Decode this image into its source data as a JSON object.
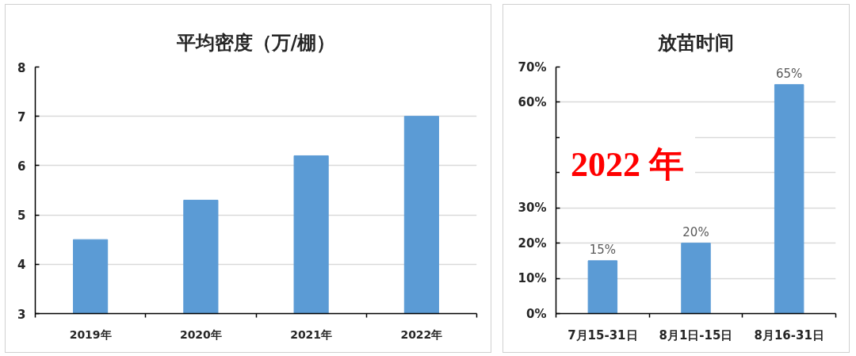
{
  "chart_data": [
    {
      "type": "bar",
      "title": "平均密度（万/棚）",
      "categories": [
        "2019年",
        "2020年",
        "2021年",
        "2022年"
      ],
      "values": [
        4.5,
        5.3,
        6.2,
        7.0
      ],
      "color": "#5b9bd5",
      "ylim": [
        3,
        8
      ],
      "yticks": [
        3,
        4,
        5,
        6,
        7,
        8
      ],
      "grid": "y"
    },
    {
      "type": "bar",
      "title": "放苗时间",
      "categories": [
        "7月15-31日",
        "8月1日-15日",
        "8月16-31日"
      ],
      "values": [
        15,
        20,
        65
      ],
      "value_labels": [
        "15%",
        "20%",
        "65%"
      ],
      "color": "#5b9bd5",
      "ylim": [
        0,
        70
      ],
      "yticks": [
        {
          "value": 0,
          "label": "0%"
        },
        {
          "value": 10,
          "label": "10%"
        },
        {
          "value": 20,
          "label": "20%"
        },
        {
          "value": 30,
          "label": "30%"
        },
        {
          "value": 40,
          "label": null
        },
        {
          "value": 50,
          "label": null
        },
        {
          "value": 60,
          "label": "60%"
        },
        {
          "value": 70,
          "label": "70%"
        }
      ],
      "grid": "y",
      "annotations": [
        "2022 年"
      ]
    }
  ]
}
